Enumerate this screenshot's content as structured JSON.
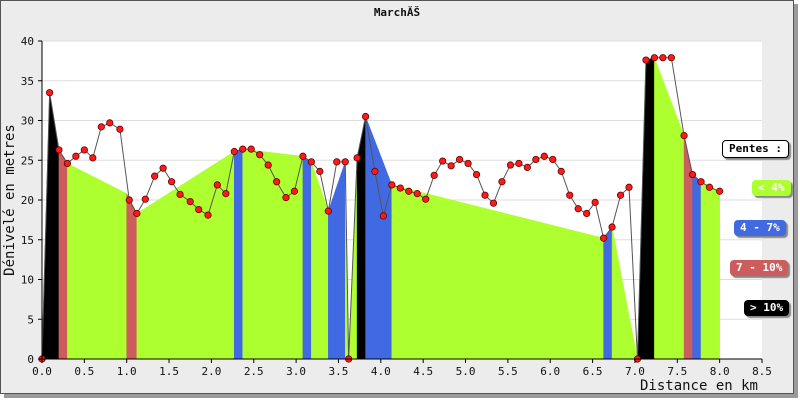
{
  "chart_data": {
    "type": "area",
    "title": "MarchĂŠ",
    "xlabel": "Distance en km",
    "ylabel": "Dénivelé en metres",
    "xlim": [
      0,
      8.5
    ],
    "ylim": [
      0,
      40
    ],
    "x_ticks": [
      0.0,
      0.5,
      1.0,
      1.5,
      2.0,
      2.5,
      3.0,
      3.5,
      4.0,
      4.5,
      5.0,
      5.5,
      6.0,
      6.5,
      7.0,
      7.5,
      8.0,
      8.5
    ],
    "y_ticks": [
      0,
      5,
      10,
      15,
      20,
      25,
      30,
      35,
      40
    ],
    "grid": true,
    "legend_title": "Pentes :",
    "legend_position": "right",
    "categories": [
      {
        "label": "< 4%",
        "color": "#adff2f"
      },
      {
        "label": "4 - 7%",
        "color": "#4169e1"
      },
      {
        "label": "7 - 10%",
        "color": "#cd5c5c"
      },
      {
        "label": "> 10%",
        "color": "#000000"
      }
    ],
    "points": [
      [
        0.0,
        0.0
      ],
      [
        0.09,
        33.5
      ],
      [
        0.2,
        26.3
      ],
      [
        0.3,
        24.6
      ],
      [
        0.4,
        25.5
      ],
      [
        0.5,
        26.3
      ],
      [
        0.6,
        25.3
      ],
      [
        0.7,
        29.2
      ],
      [
        0.8,
        29.7
      ],
      [
        0.92,
        28.9
      ],
      [
        1.03,
        20.0
      ],
      [
        1.12,
        18.3
      ],
      [
        1.22,
        20.1
      ],
      [
        1.33,
        23.0
      ],
      [
        1.43,
        24.0
      ],
      [
        1.53,
        22.3
      ],
      [
        1.63,
        20.7
      ],
      [
        1.75,
        19.8
      ],
      [
        1.85,
        18.8
      ],
      [
        1.96,
        18.1
      ],
      [
        2.07,
        21.9
      ],
      [
        2.17,
        20.8
      ],
      [
        2.27,
        26.1
      ],
      [
        2.37,
        26.4
      ],
      [
        2.47,
        26.4
      ],
      [
        2.57,
        25.7
      ],
      [
        2.67,
        24.4
      ],
      [
        2.77,
        22.3
      ],
      [
        2.88,
        20.3
      ],
      [
        2.98,
        21.1
      ],
      [
        3.08,
        25.5
      ],
      [
        3.18,
        24.8
      ],
      [
        3.28,
        23.6
      ],
      [
        3.38,
        18.6
      ],
      [
        3.48,
        24.8
      ],
      [
        3.58,
        24.8
      ],
      [
        3.62,
        0.0
      ],
      [
        3.72,
        25.3
      ],
      [
        3.82,
        30.5
      ],
      [
        3.93,
        23.6
      ],
      [
        4.03,
        18.0
      ],
      [
        4.13,
        21.9
      ],
      [
        4.23,
        21.5
      ],
      [
        4.33,
        21.1
      ],
      [
        4.43,
        20.8
      ],
      [
        4.53,
        20.1
      ],
      [
        4.63,
        23.1
      ],
      [
        4.73,
        24.9
      ],
      [
        4.83,
        24.3
      ],
      [
        4.93,
        25.1
      ],
      [
        5.03,
        24.6
      ],
      [
        5.13,
        23.2
      ],
      [
        5.23,
        20.6
      ],
      [
        5.33,
        19.6
      ],
      [
        5.43,
        22.3
      ],
      [
        5.53,
        24.4
      ],
      [
        5.63,
        24.6
      ],
      [
        5.73,
        24.1
      ],
      [
        5.83,
        25.1
      ],
      [
        5.93,
        25.5
      ],
      [
        6.03,
        25.1
      ],
      [
        6.13,
        23.6
      ],
      [
        6.23,
        20.6
      ],
      [
        6.33,
        18.9
      ],
      [
        6.43,
        18.3
      ],
      [
        6.53,
        19.7
      ],
      [
        6.63,
        15.2
      ],
      [
        6.73,
        16.6
      ],
      [
        6.83,
        20.6
      ],
      [
        6.93,
        21.6
      ],
      [
        7.03,
        0.0
      ],
      [
        7.13,
        37.6
      ],
      [
        7.23,
        37.9
      ],
      [
        7.33,
        37.9
      ],
      [
        7.43,
        37.9
      ],
      [
        7.58,
        28.1
      ],
      [
        7.68,
        23.2
      ],
      [
        7.78,
        22.3
      ],
      [
        7.88,
        21.6
      ],
      [
        8.0,
        21.1
      ]
    ],
    "segments": [
      [
        "> 10%",
        0.0,
        0.09,
        0.0,
        33.5
      ],
      [
        "> 10%",
        0.09,
        0.2,
        33.5,
        26.3
      ],
      [
        "7 - 10%",
        0.2,
        0.3,
        26.3,
        24.6
      ],
      [
        "< 4%",
        0.3,
        1.0,
        24.6,
        20.8
      ],
      [
        "7 - 10%",
        1.0,
        1.12,
        20.8,
        18.3
      ],
      [
        "< 4%",
        1.12,
        2.27,
        18.3,
        26.1
      ],
      [
        "4 - 7%",
        2.27,
        2.37,
        26.1,
        26.4
      ],
      [
        "< 4%",
        2.37,
        3.08,
        26.4,
        25.5
      ],
      [
        "4 - 7%",
        3.08,
        3.18,
        25.5,
        24.8
      ],
      [
        "< 4%",
        3.18,
        3.38,
        24.8,
        18.6
      ],
      [
        "4 - 7%",
        3.38,
        3.58,
        18.6,
        24.8
      ],
      [
        "< 4%",
        3.58,
        3.62,
        24.8,
        0.0
      ],
      [
        "< 4%",
        3.62,
        3.72,
        0.0,
        25.3
      ],
      [
        "> 10%",
        3.72,
        3.82,
        25.3,
        30.5
      ],
      [
        "4 - 7%",
        3.82,
        4.13,
        30.5,
        21.9
      ],
      [
        "< 4%",
        4.13,
        6.63,
        21.9,
        15.2
      ],
      [
        "4 - 7%",
        6.63,
        6.73,
        15.2,
        16.6
      ],
      [
        "< 4%",
        6.73,
        7.03,
        16.6,
        0.0
      ],
      [
        "> 10%",
        7.03,
        7.13,
        0.0,
        37.6
      ],
      [
        "> 10%",
        7.13,
        7.23,
        37.6,
        37.9
      ],
      [
        "< 4%",
        7.23,
        7.58,
        37.9,
        28.1
      ],
      [
        "7 - 10%",
        7.58,
        7.68,
        28.1,
        23.2
      ],
      [
        "4 - 7%",
        7.68,
        7.78,
        23.2,
        22.3
      ],
      [
        "< 4%",
        7.78,
        8.0,
        22.3,
        21.1
      ]
    ]
  }
}
